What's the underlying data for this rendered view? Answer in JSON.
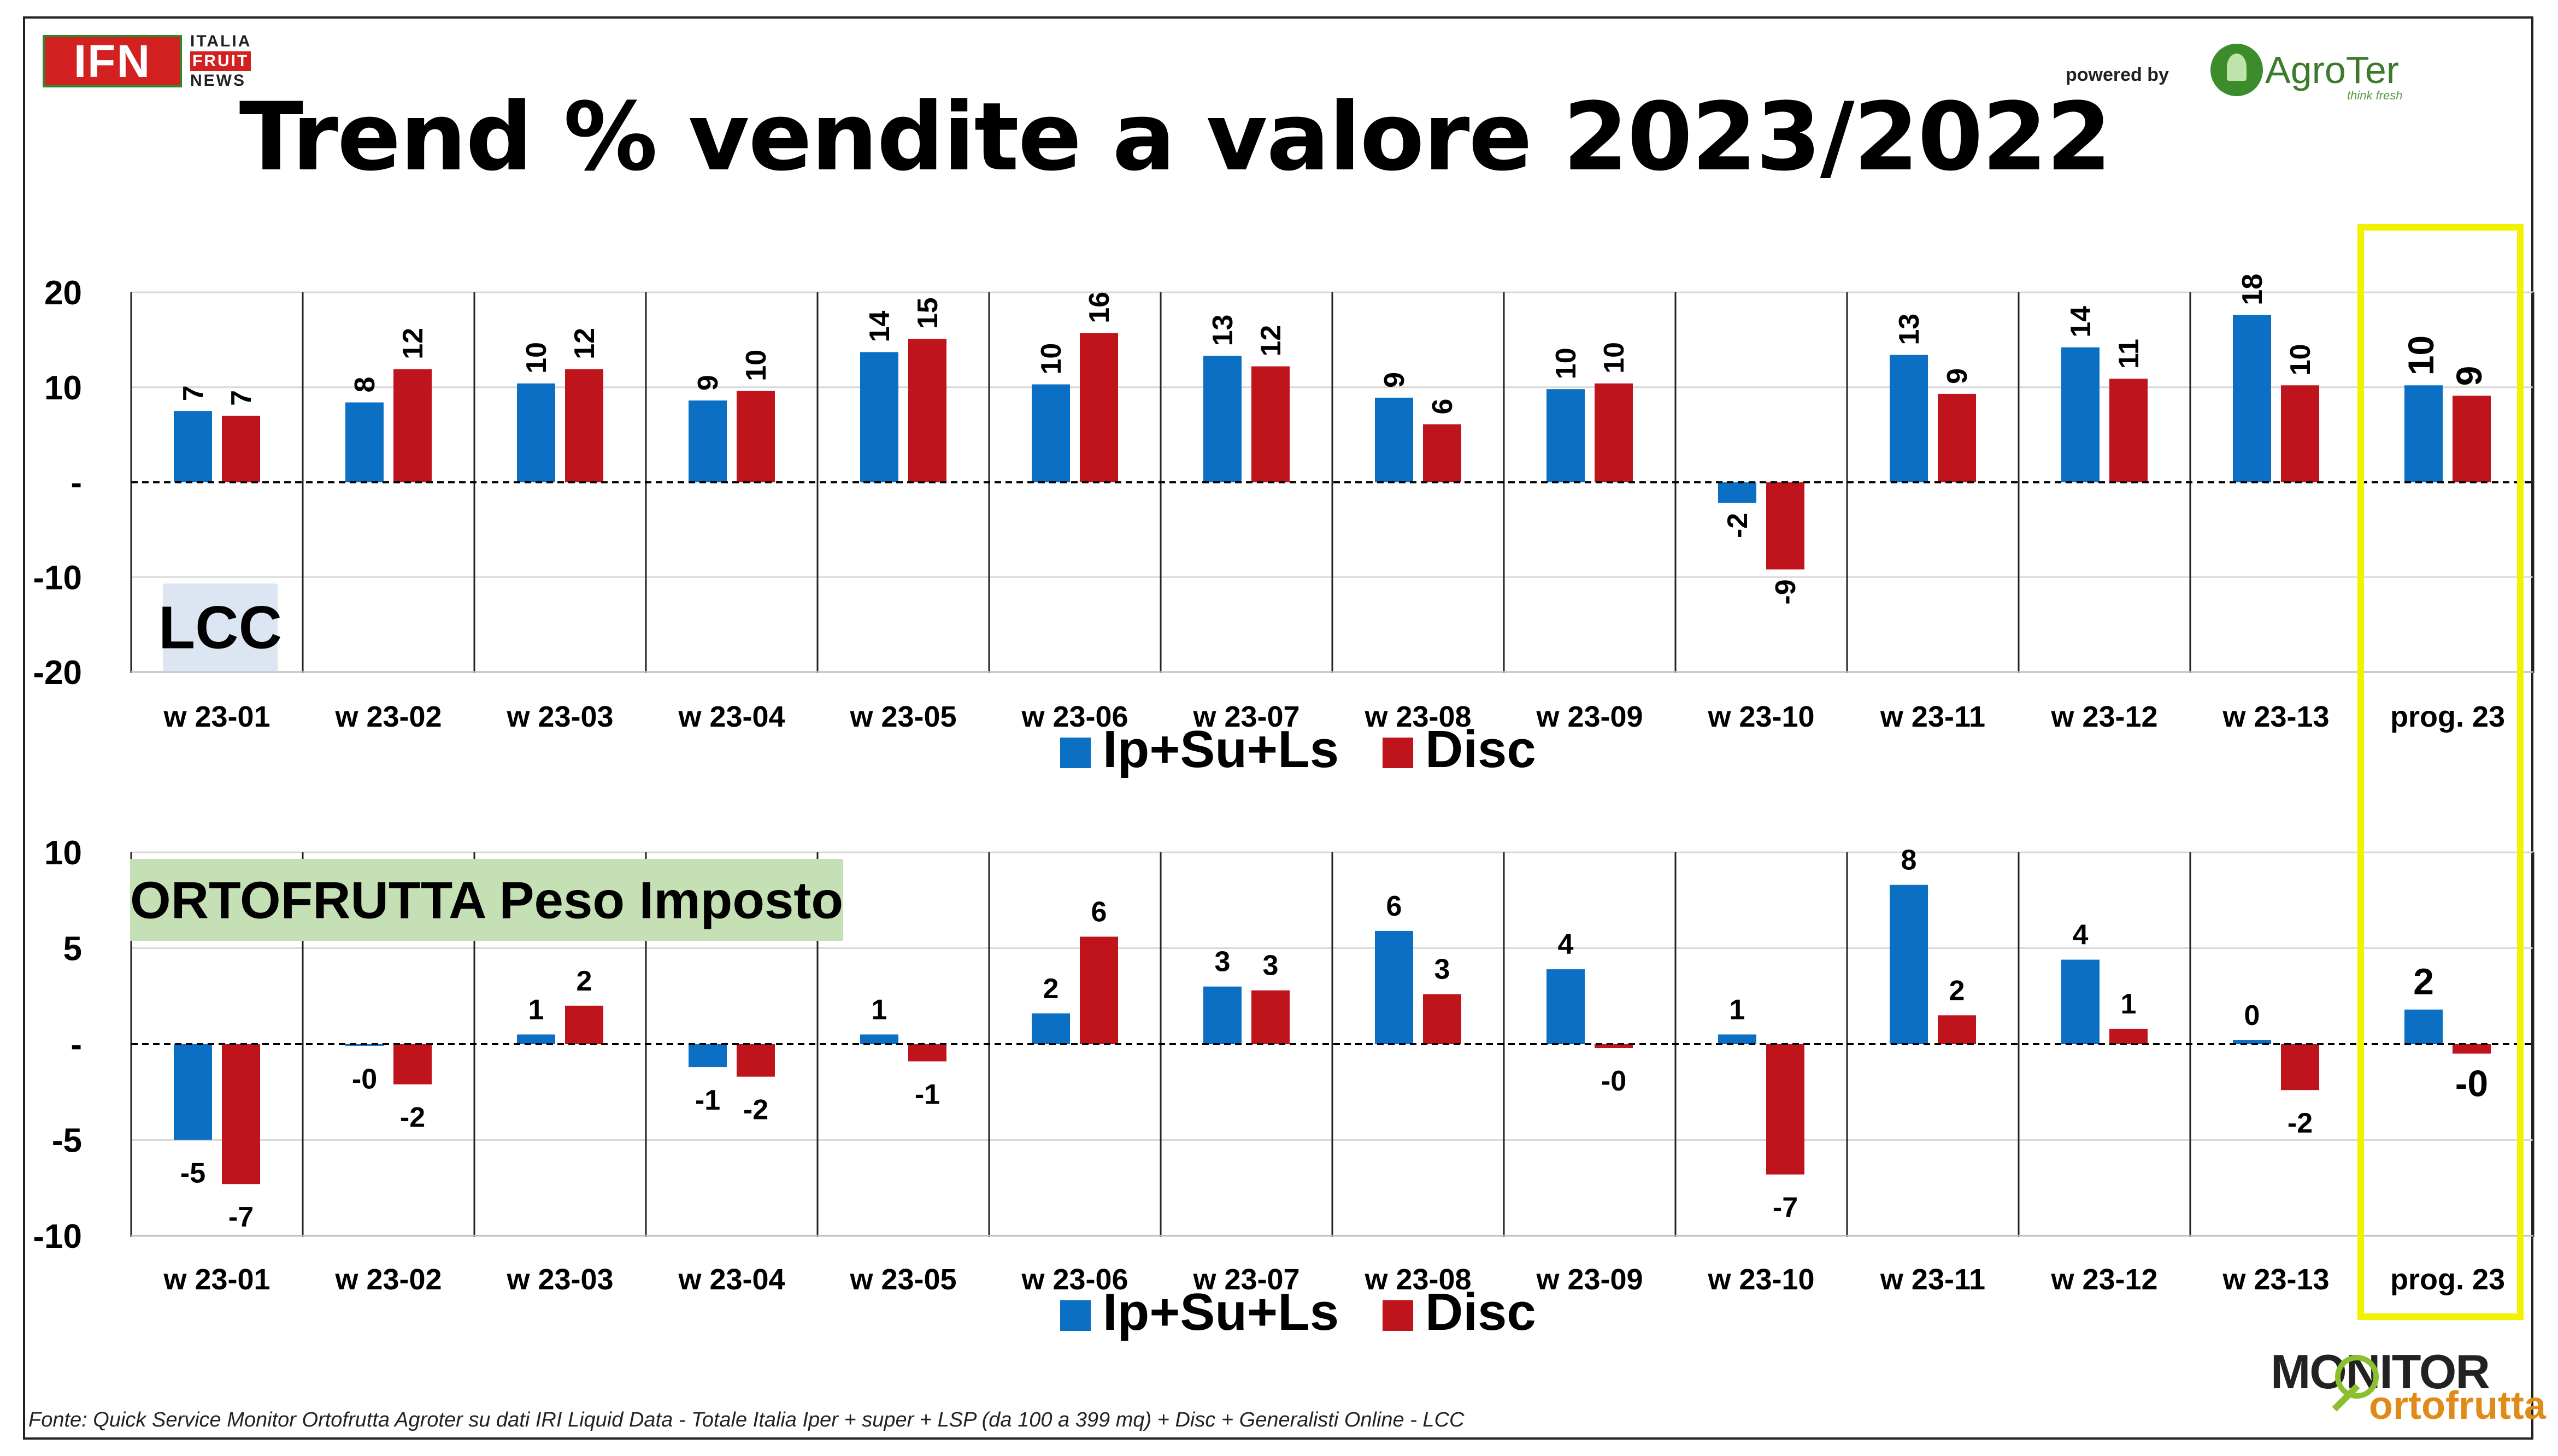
{
  "title": "Trend % vendite a valore 2023/2022",
  "logos": {
    "ifn": {
      "mark": "IFN",
      "line1": "ITALIA",
      "line2": "FRUIT",
      "line3": "NEWS"
    },
    "powered_by": "powered by",
    "agroter": {
      "name": "AgroTer",
      "tagline": "think fresh"
    },
    "monitor": {
      "line1": "MONITOR",
      "line2": "ortofrutta"
    }
  },
  "footnote": "Fonte: Quick Service Monitor Ortofrutta Agroter su dati IRI Liquid Data - Totale Italia Iper + super + LSP (da 100 a 399 mq) + Disc + Generalisti Online - LCC",
  "colors": {
    "ip_su_ls": "#0b6fc4",
    "disc": "#c0141c",
    "highlight": "#f2f200",
    "lcc_box": "#dce6f2",
    "orto_box": "#c5e0b4"
  },
  "chart_data": [
    {
      "type": "bar",
      "panel_label": "LCC",
      "categories": [
        "w 23-01",
        "w 23-02",
        "w 23-03",
        "w 23-04",
        "w 23-05",
        "w 23-06",
        "w 23-07",
        "w 23-08",
        "w 23-09",
        "w 23-10",
        "w 23-11",
        "w 23-12",
        "w 23-13",
        "prog. 23"
      ],
      "series": [
        {
          "name": "Ip+Su+Ls",
          "values": [
            7.5,
            8.4,
            10.4,
            8.6,
            13.7,
            10.3,
            13.3,
            8.9,
            9.8,
            -2.2,
            13.4,
            14.2,
            17.6,
            10.2
          ],
          "labels": [
            "7",
            "8",
            "10",
            "9",
            "14",
            "10",
            "13",
            "9",
            "10",
            "-2",
            "13",
            "14",
            "18",
            "10"
          ]
        },
        {
          "name": "Disc",
          "values": [
            7.0,
            11.9,
            11.9,
            9.6,
            15.1,
            15.7,
            12.2,
            6.1,
            10.4,
            -9.2,
            9.3,
            10.9,
            10.2,
            9.1
          ],
          "labels": [
            "7",
            "12",
            "12",
            "10",
            "15",
            "16",
            "12",
            "6",
            "10",
            "-9",
            "9",
            "11",
            "10",
            "9"
          ]
        }
      ],
      "yticks": [
        "20",
        "10",
        "-",
        "-10",
        "-20"
      ],
      "ylim": [
        -20,
        20
      ],
      "legend_position": "bottom"
    },
    {
      "type": "bar",
      "panel_label": "ORTOFRUTTA Peso Imposto",
      "categories": [
        "w 23-01",
        "w 23-02",
        "w 23-03",
        "w 23-04",
        "w 23-05",
        "w 23-06",
        "w 23-07",
        "w 23-08",
        "w 23-09",
        "w 23-10",
        "w 23-11",
        "w 23-12",
        "w 23-13",
        "prog. 23"
      ],
      "series": [
        {
          "name": "Ip+Su+Ls",
          "values": [
            -5.0,
            -0.1,
            0.5,
            -1.2,
            0.5,
            1.6,
            3.0,
            5.9,
            3.9,
            0.5,
            8.3,
            4.4,
            0.2,
            1.8
          ],
          "labels": [
            "-5",
            "-0",
            "1",
            "-1",
            "1",
            "2",
            "3",
            "6",
            "4",
            "1",
            "8",
            "4",
            "0",
            "2"
          ]
        },
        {
          "name": "Disc",
          "values": [
            -7.3,
            -2.1,
            2.0,
            -1.7,
            -0.9,
            5.6,
            2.8,
            2.6,
            -0.2,
            -6.8,
            1.5,
            0.8,
            -2.4,
            -0.5
          ],
          "labels": [
            "-7",
            "-2",
            "2",
            "-2",
            "-1",
            "6",
            "3",
            "3",
            "-0",
            "-7",
            "2",
            "1",
            "-2",
            "-0"
          ]
        }
      ],
      "yticks": [
        "10",
        "5",
        "-",
        "-5",
        "-10"
      ],
      "ylim": [
        -10,
        10
      ],
      "legend_position": "bottom"
    }
  ]
}
